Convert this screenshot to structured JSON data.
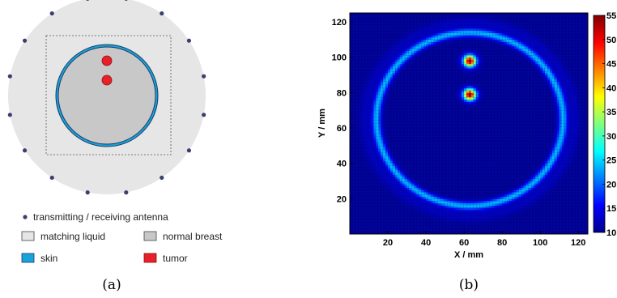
{
  "diagram": {
    "caption": "(a)",
    "legend": [
      {
        "id": "antenna",
        "label": "transmitting / receiving antenna",
        "color": "#3a3f6e"
      },
      {
        "id": "liquid",
        "label": "matching liquid",
        "color": "#e6e6e6"
      },
      {
        "id": "breast",
        "label": "normal breast",
        "color": "#c8c8c8"
      },
      {
        "id": "skin",
        "label": "skin",
        "color": "#1aa3d8"
      },
      {
        "id": "tumor",
        "label": "tumor",
        "color": "#e8202a"
      }
    ]
  },
  "chart_data": {
    "type": "heatmap",
    "caption": "(b)",
    "xlabel": "X / mm",
    "ylabel": "Y / mm",
    "xlim": [
      0,
      125
    ],
    "ylim": [
      0,
      125
    ],
    "xticks": [
      20,
      40,
      60,
      80,
      100,
      120
    ],
    "yticks": [
      20,
      40,
      60,
      80,
      100,
      120
    ],
    "colorbar": {
      "min": 10,
      "max": 55,
      "ticks": [
        "55",
        "50",
        "45",
        "40",
        "35",
        "30",
        "25",
        "20",
        "15",
        "10"
      ]
    },
    "features": {
      "skin_ring": {
        "center": [
          63,
          65
        ],
        "radius": 49,
        "value": 24
      },
      "tumors": [
        {
          "x": 63,
          "y": 98,
          "value": 55
        },
        {
          "x": 63,
          "y": 79,
          "value": 55
        }
      ],
      "background": 11
    }
  }
}
